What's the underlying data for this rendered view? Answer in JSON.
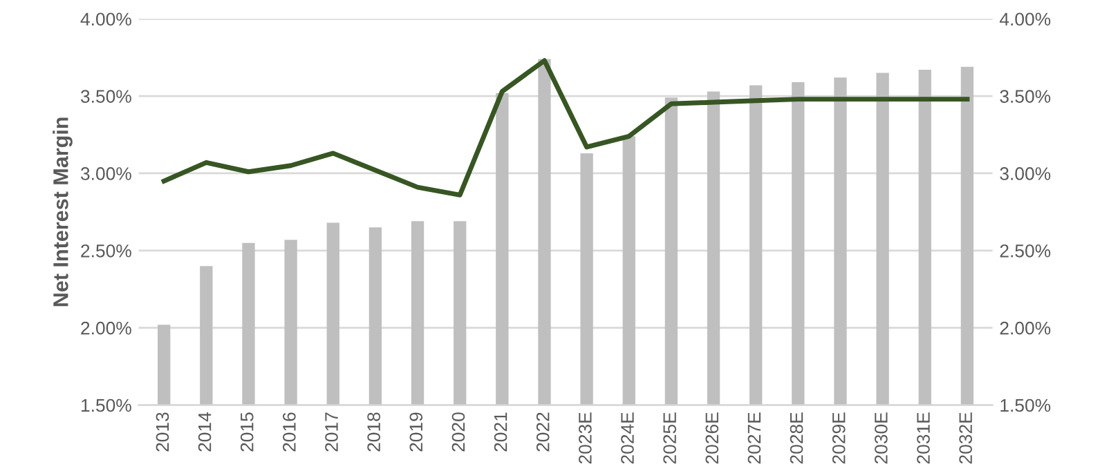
{
  "chart_data": {
    "type": "bar",
    "ylabel": "Net Interest Margin",
    "categories": [
      "2013",
      "2014",
      "2015",
      "2016",
      "2017",
      "2018",
      "2019",
      "2020",
      "2021",
      "2022",
      "2023E",
      "2024E",
      "2025E",
      "2026E",
      "2027E",
      "2028E",
      "2029E",
      "2030E",
      "2031E",
      "2032E"
    ],
    "series": [
      {
        "color": "#bfbfbf",
        "values": [
          2.02,
          2.4,
          2.55,
          2.57,
          2.68,
          2.65,
          2.69,
          2.69,
          3.52,
          3.74,
          3.13,
          3.24,
          3.49,
          3.53,
          3.57,
          3.59,
          3.62,
          3.65,
          3.67,
          3.69
        ]
      },
      {
        "type": "line",
        "color": "#375623",
        "values": [
          2.95,
          3.07,
          3.01,
          3.05,
          3.13,
          3.02,
          2.91,
          2.86,
          3.53,
          3.73,
          3.17,
          3.24,
          3.45,
          3.46,
          3.47,
          3.48,
          3.48,
          3.48,
          3.48,
          3.48
        ]
      }
    ],
    "ylim": [
      1.5,
      4.0
    ],
    "yticks": [
      {
        "value": 1.5,
        "label": "1.50%"
      },
      {
        "value": 2.0,
        "label": "2.00%"
      },
      {
        "value": 2.5,
        "label": "2.50%"
      },
      {
        "value": 3.0,
        "label": "3.00%"
      },
      {
        "value": 3.5,
        "label": "3.50%"
      },
      {
        "value": 4.0,
        "label": "4.00%"
      }
    ],
    "y2lim": [
      1.5,
      4.0
    ],
    "y2ticks": [
      {
        "value": 1.5,
        "label": "1.50%"
      },
      {
        "value": 2.0,
        "label": "2.00%"
      },
      {
        "value": 2.5,
        "label": "2.50%"
      },
      {
        "value": 3.0,
        "label": "3.00%"
      },
      {
        "value": 3.5,
        "label": "3.50%"
      },
      {
        "value": 4.0,
        "label": "4.00%"
      }
    ],
    "grid": "y",
    "marker": "none",
    "line_style": "solid"
  }
}
